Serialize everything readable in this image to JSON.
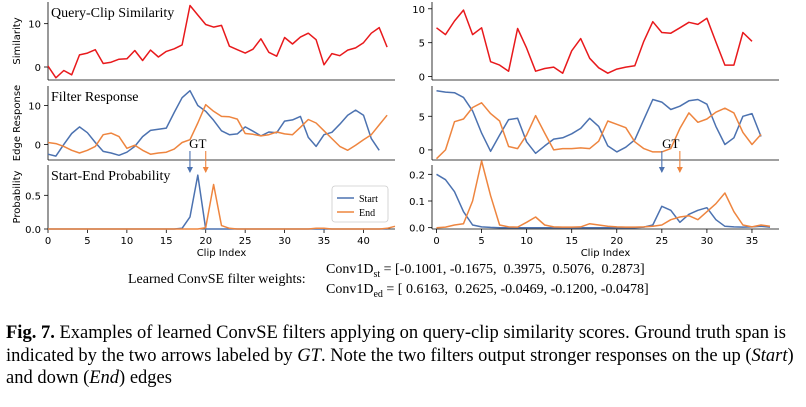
{
  "chart_data": [
    {
      "type": "line",
      "panel": "left",
      "title": "Query-Clip Similarity",
      "ylabel": "Similarity",
      "xlim": [
        0,
        44
      ],
      "ylim": [
        -3,
        15
      ],
      "yticks": [
        0,
        10
      ],
      "xticks": [],
      "series": [
        {
          "color": "#e8191c",
          "values": [
            0.2,
            -2.5,
            -0.8,
            -1.8,
            2.8,
            3.2,
            4,
            0.8,
            1.1,
            1.8,
            1.9,
            3.8,
            1.5,
            3.9,
            2.3,
            3.6,
            4.2,
            5.1,
            14.2,
            12,
            9.8,
            9.2,
            9.6,
            4.8,
            4,
            3.2,
            4.1,
            6.5,
            3.4,
            2.5,
            6.8,
            5.3,
            6.9,
            7.8,
            6.3,
            0.5,
            3.1,
            2.6,
            3.9,
            4.4,
            5.6,
            7.8,
            9.1,
            4.6
          ]
        }
      ]
    },
    {
      "type": "line",
      "panel": "left",
      "title": "Filter Response",
      "ylabel": "Edge Response",
      "xlim": [
        0,
        44
      ],
      "ylim": [
        -4,
        15
      ],
      "yticks": [
        0,
        10
      ],
      "xticks": [],
      "series": [
        {
          "name": "Start",
          "color": "#4c72b0",
          "values": [
            -2.5,
            -3,
            0,
            2.8,
            4.5,
            3,
            0.5,
            -1.8,
            -2.2,
            -2.8,
            -2,
            -0.5,
            2,
            3.6,
            3.9,
            4.2,
            8.2,
            12,
            13.8,
            10,
            8.5,
            6.2,
            3.5,
            2.5,
            2.7,
            4.5,
            3.4,
            2.2,
            3.2,
            3,
            6,
            6.3,
            7.2,
            1.8,
            -0.5,
            2.5,
            3.1,
            5.2,
            7.5,
            8.8,
            7.5,
            1.5,
            -1.5
          ]
        },
        {
          "name": "End",
          "color": "#ee853f",
          "values": [
            0.5,
            0.2,
            -0.5,
            -1.5,
            -2.2,
            -1.5,
            -0.5,
            2.5,
            2.9,
            2,
            -1,
            -0.2,
            -1.5,
            -2.5,
            -2.2,
            -2,
            -1.2,
            0.5,
            1.2,
            5.5,
            10.2,
            8.5,
            7.2,
            7.1,
            6.5,
            2.8,
            2.6,
            2.2,
            2.5,
            3.2,
            2.7,
            2.5,
            4.4,
            6.4,
            5.5,
            3.5,
            1.5,
            -0.5,
            -1.5,
            -0.2,
            1.2,
            2.5,
            5,
            7.5
          ]
        }
      ]
    },
    {
      "type": "line",
      "panel": "left",
      "title": "Start-End Probability",
      "ylabel": "Probability",
      "xlabel": "Clip Index",
      "xlim": [
        0,
        44
      ],
      "ylim": [
        0,
        0.95
      ],
      "yticks": [
        0.0,
        0.5
      ],
      "ytick_labels": [
        "0.0",
        "0.5"
      ],
      "xticks": [
        0,
        5,
        10,
        15,
        20,
        25,
        30,
        35,
        40
      ],
      "legend": "inside-right",
      "annotations": [
        {
          "text": "GT",
          "start_x": 18,
          "end_x": 20
        }
      ],
      "series": [
        {
          "name": "Start",
          "color": "#4c72b0",
          "values": [
            0,
            0,
            0,
            0,
            0,
            0,
            0,
            0,
            0,
            0,
            0,
            0,
            0,
            0,
            0,
            0,
            0,
            0.01,
            0.18,
            0.8,
            0,
            0,
            0,
            0,
            0,
            0,
            0,
            0,
            0,
            0,
            0,
            0,
            0,
            0,
            0,
            0,
            0,
            0,
            0,
            0,
            0,
            0,
            0,
            0
          ]
        },
        {
          "name": "End",
          "color": "#ee853f",
          "values": [
            0,
            0,
            0,
            0,
            0,
            0,
            0,
            0,
            0,
            0,
            0,
            0,
            0,
            0,
            0,
            0,
            0,
            0,
            0,
            0,
            0.02,
            0.66,
            0.05,
            0.01,
            0,
            0,
            0,
            0,
            0,
            0,
            0,
            0,
            0,
            0,
            0.01,
            0.01,
            0,
            0,
            0,
            0,
            0,
            0,
            0,
            0.01,
            0.04
          ]
        }
      ]
    },
    {
      "type": "line",
      "panel": "right",
      "title": "",
      "ylabel": "",
      "xlim": [
        -0.5,
        38
      ],
      "ylim": [
        -0.5,
        11
      ],
      "yticks": [
        0,
        5,
        10
      ],
      "xticks": [],
      "series": [
        {
          "color": "#e8191c",
          "values": [
            7.2,
            6.2,
            8.2,
            9.8,
            6.2,
            7.2,
            2.2,
            1.7,
            0.8,
            7.1,
            4.2,
            0.8,
            1.2,
            1.4,
            0.5,
            3.8,
            5.6,
            2.7,
            1.3,
            0.5,
            1.1,
            1.4,
            1.6,
            5.2,
            8.1,
            6.5,
            6.4,
            7.2,
            8,
            7.7,
            8.6,
            5.1,
            1.7,
            1.7,
            6.5,
            5.2
          ]
        }
      ]
    },
    {
      "type": "line",
      "panel": "right",
      "title": "",
      "ylabel": "",
      "xlim": [
        -0.5,
        38
      ],
      "ylim": [
        -1.5,
        9.5
      ],
      "yticks": [
        0,
        5
      ],
      "xticks": [],
      "series": [
        {
          "name": "Start",
          "color": "#4c72b0",
          "values": [
            8.8,
            8.6,
            8.5,
            7.8,
            5.8,
            2.5,
            -0.2,
            2.2,
            4.5,
            4.7,
            1.2,
            -0.5,
            0.6,
            1.6,
            1.8,
            2.4,
            3.2,
            4.7,
            3.5,
            0.6,
            -0.3,
            0.4,
            1.5,
            4.5,
            7.5,
            7.1,
            6,
            6.5,
            7.3,
            7.5,
            6.8,
            3.5,
            0.8,
            1.8,
            5,
            5.4,
            2
          ]
        },
        {
          "name": "End",
          "color": "#ee853f",
          "values": [
            -1.3,
            0,
            4.2,
            4.6,
            6.3,
            7,
            5.4,
            4.3,
            0.5,
            0.2,
            2.2,
            5.1,
            2.5,
            0,
            0.2,
            0.2,
            0.3,
            0.2,
            1.3,
            4.3,
            3.8,
            3.3,
            1.2,
            0.2,
            -0.3,
            -0.3,
            0.2,
            3.2,
            5.5,
            4.1,
            4.6,
            5.6,
            6.2,
            5.5,
            2.6,
            0.8,
            2.3
          ]
        }
      ]
    },
    {
      "type": "line",
      "panel": "right",
      "title": "",
      "ylabel": "",
      "xlabel": "Clip Index",
      "xlim": [
        -0.5,
        38
      ],
      "ylim": [
        -0.005,
        0.235
      ],
      "yticks": [
        0.0,
        0.1,
        0.2
      ],
      "ytick_labels": [
        "0.0",
        "0.1",
        "0.2"
      ],
      "xticks": [
        0,
        5,
        10,
        15,
        20,
        25,
        30,
        35
      ],
      "annotations": [
        {
          "text": "GT",
          "start_x": 25,
          "end_x": 27
        }
      ],
      "series": [
        {
          "name": "Start",
          "color": "#4c72b0",
          "values": [
            0.2,
            0.18,
            0.135,
            0.06,
            0.01,
            0.003,
            0.001,
            0,
            0,
            0,
            0,
            0,
            0,
            0,
            0,
            0,
            0,
            0,
            0,
            0,
            0,
            0,
            0,
            0.002,
            0.01,
            0.08,
            0.065,
            0.02,
            0.05,
            0.065,
            0.075,
            0.03,
            0.005,
            0.003,
            0.002,
            0.003,
            0.005,
            0.002
          ]
        },
        {
          "name": "End",
          "color": "#ee853f",
          "values": [
            0,
            0.002,
            0.01,
            0.015,
            0.1,
            0.25,
            0.12,
            0.01,
            0.003,
            0.002,
            0.02,
            0.04,
            0.01,
            0.003,
            0.002,
            0.002,
            0.003,
            0.015,
            0.01,
            0.005,
            0.003,
            0.002,
            0.002,
            0.003,
            0.005,
            0.01,
            0.03,
            0.04,
            0.045,
            0.03,
            0.06,
            0.09,
            0.13,
            0.06,
            0.01,
            0.003,
            0.01,
            0.005
          ]
        }
      ]
    }
  ],
  "weights": {
    "label": "Learned ConvSE filter weights:",
    "st_name": "Conv1D",
    "st_sub": "st",
    "st_values": " = [-0.1001, -0.1675,  0.3975,  0.5076,  0.2873]",
    "ed_name": "Conv1D",
    "ed_sub": "ed",
    "ed_values": " = [ 0.6163,  0.2625, -0.0469, -0.1200, -0.0478]"
  },
  "caption": {
    "label": "Fig. 7.",
    "part1": " Examples of learned ConvSE filters applying on query-clip similarity scores. Ground truth span is indicated by the two arrows labeled by ",
    "gt": "GT",
    "part2": ". Note the two filters output stronger responses on the up (",
    "start": "Start",
    "part3": ") and down (",
    "end": "End",
    "part4": ") edges"
  }
}
